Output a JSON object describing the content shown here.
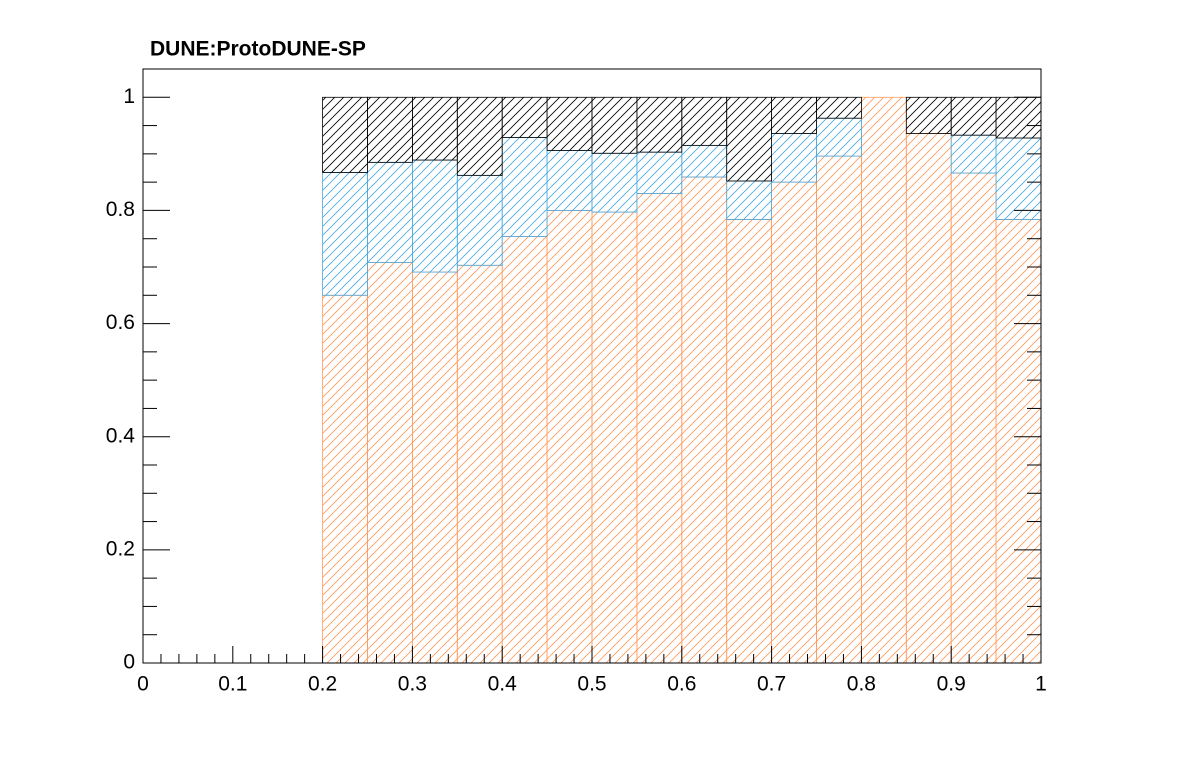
{
  "chart_data": {
    "type": "histogram",
    "title": "DUNE:ProtoDUNE-SP",
    "stacked": true,
    "fill": "hatch",
    "bins": [
      0.2,
      0.25,
      0.3,
      0.35,
      0.4,
      0.45,
      0.5,
      0.55,
      0.6,
      0.65,
      0.7,
      0.75,
      0.8,
      0.85,
      0.9,
      0.95,
      1
    ],
    "series": [
      {
        "color": "#ff9a5c",
        "values": [
          0.65,
          0.708,
          0.691,
          0.703,
          0.754,
          0.8,
          0.797,
          0.83,
          0.859,
          0.784,
          0.85,
          0.896,
          1.0,
          0.936,
          0.866,
          0.784
        ]
      },
      {
        "color": "#4aa8e0",
        "values": [
          0.217,
          0.177,
          0.198,
          0.159,
          0.175,
          0.106,
          0.104,
          0.073,
          0.056,
          0.068,
          0.086,
          0.067,
          0,
          0,
          0.067,
          0.144
        ]
      },
      {
        "color": "#000000",
        "values": [
          0.133,
          0.115,
          0.111,
          0.138,
          0.071,
          0.094,
          0.099,
          0.097,
          0.085,
          0.148,
          0.064,
          0.037,
          0,
          0.064,
          0.067,
          0.072
        ]
      }
    ],
    "xlim": [
      0,
      1
    ],
    "xticks": [
      0,
      0.1,
      0.2,
      0.3,
      0.4,
      0.5,
      0.6,
      0.7,
      0.8,
      0.9,
      1
    ],
    "ylim": [
      0,
      1.05
    ],
    "yticks": [
      0,
      0.2,
      0.4,
      0.6,
      0.8,
      1
    ]
  }
}
